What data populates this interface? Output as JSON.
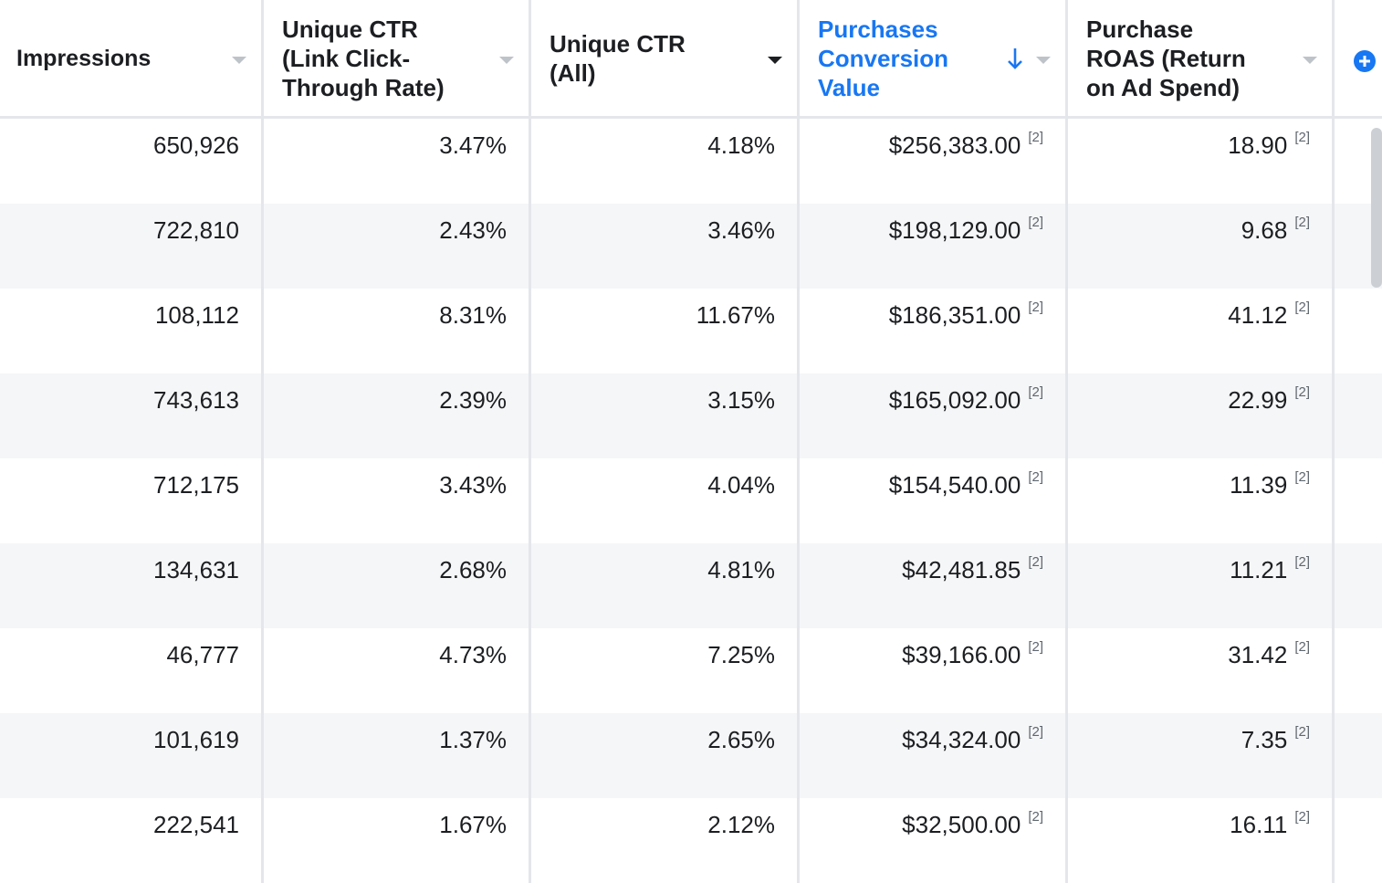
{
  "columns": [
    {
      "label": "Impressions"
    },
    {
      "label": "Unique CTR\n(Link Click-\nThrough Rate)"
    },
    {
      "label": "Unique CTR\n(All)"
    },
    {
      "label": "Purchases\nConversion\nValue"
    },
    {
      "label": "Purchase\nROAS (Return\non Ad Spend)"
    }
  ],
  "sort": {
    "column": "Purchases Conversion Value",
    "direction": "descending"
  },
  "colors": {
    "active_header": "#1877f2",
    "row_alt": "#f5f6f7",
    "border": "#e4e6eb"
  },
  "rows": [
    {
      "impressions": "650,926",
      "ctr_link": "3.47%",
      "ctr_all": "4.18%",
      "conv_value": "$256,383.00",
      "conv_fn": "[2]",
      "roas": "18.90",
      "roas_fn": "[2]"
    },
    {
      "impressions": "722,810",
      "ctr_link": "2.43%",
      "ctr_all": "3.46%",
      "conv_value": "$198,129.00",
      "conv_fn": "[2]",
      "roas": "9.68",
      "roas_fn": "[2]"
    },
    {
      "impressions": "108,112",
      "ctr_link": "8.31%",
      "ctr_all": "11.67%",
      "conv_value": "$186,351.00",
      "conv_fn": "[2]",
      "roas": "41.12",
      "roas_fn": "[2]"
    },
    {
      "impressions": "743,613",
      "ctr_link": "2.39%",
      "ctr_all": "3.15%",
      "conv_value": "$165,092.00",
      "conv_fn": "[2]",
      "roas": "22.99",
      "roas_fn": "[2]"
    },
    {
      "impressions": "712,175",
      "ctr_link": "3.43%",
      "ctr_all": "4.04%",
      "conv_value": "$154,540.00",
      "conv_fn": "[2]",
      "roas": "11.39",
      "roas_fn": "[2]"
    },
    {
      "impressions": "134,631",
      "ctr_link": "2.68%",
      "ctr_all": "4.81%",
      "conv_value": "$42,481.85",
      "conv_fn": "[2]",
      "roas": "11.21",
      "roas_fn": "[2]"
    },
    {
      "impressions": "46,777",
      "ctr_link": "4.73%",
      "ctr_all": "7.25%",
      "conv_value": "$39,166.00",
      "conv_fn": "[2]",
      "roas": "31.42",
      "roas_fn": "[2]"
    },
    {
      "impressions": "101,619",
      "ctr_link": "1.37%",
      "ctr_all": "2.65%",
      "conv_value": "$34,324.00",
      "conv_fn": "[2]",
      "roas": "7.35",
      "roas_fn": "[2]"
    },
    {
      "impressions": "222,541",
      "ctr_link": "1.67%",
      "ctr_all": "2.12%",
      "conv_value": "$32,500.00",
      "conv_fn": "[2]",
      "roas": "16.11",
      "roas_fn": "[2]"
    }
  ]
}
